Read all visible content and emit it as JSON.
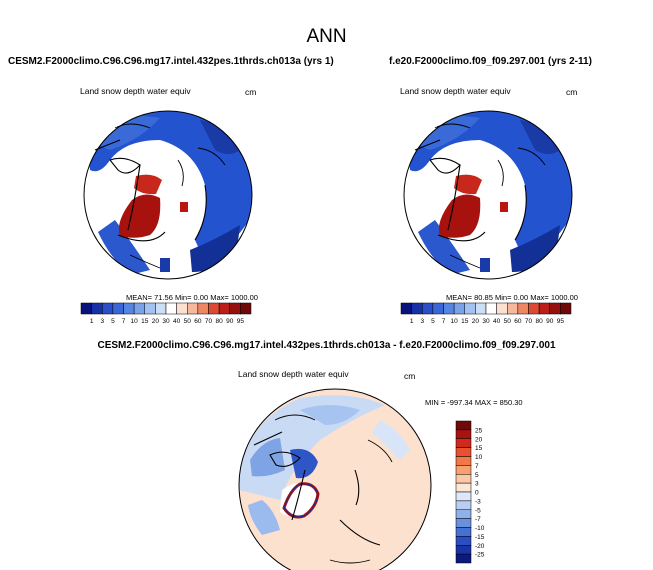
{
  "main_title": "ANN",
  "panels": [
    {
      "case_title": "CESM2.F2000climo.C96.C96.mg17.intel.432pes.1thrds.ch013a (yrs 1)",
      "variable": "Land snow depth water equiv",
      "units": "cm",
      "stats": "MEAN= 71.56  Min=   0.00  Max= 1000.00"
    },
    {
      "case_title": "f.e20.F2000climo.f09_f09.297.001 (yrs 2-11)",
      "variable": "Land snow depth water equiv",
      "units": "cm",
      "stats": "MEAN= 80.85  Min=   0.00  Max= 1000.00"
    }
  ],
  "abs_colorbar": {
    "labels": [
      "1",
      "3",
      "5",
      "7",
      "10",
      "15",
      "20",
      "30",
      "40",
      "50",
      "60",
      "70",
      "80",
      "90",
      "95"
    ],
    "colors": [
      "#08127a",
      "#1630a8",
      "#2a4fc8",
      "#3a67d8",
      "#5684e2",
      "#7aa2ea",
      "#a3c2f2",
      "#cddff7",
      "#ffffff",
      "#fde0cf",
      "#f7b79b",
      "#ef8664",
      "#dc4a35",
      "#bb1f1a",
      "#94110f",
      "#6e0a08"
    ]
  },
  "diff": {
    "title": "CESM2.F2000climo.C96.C96.mg17.intel.432pes.1thrds.ch013a - f.e20.F2000climo.f09_f09.297.001",
    "variable": "Land snow depth water equiv",
    "units": "cm",
    "stats": "MIN = -997.34 MAX = 850.30",
    "colorbar_labels": [
      "25",
      "20",
      "15",
      "10",
      "7",
      "5",
      "3",
      "0",
      "-3",
      "-5",
      "-7",
      "-10",
      "-15",
      "-20",
      "-25"
    ],
    "colorbar_colors": [
      "#6e0a08",
      "#a5140f",
      "#cf2a1c",
      "#e8502e",
      "#f2784a",
      "#f9a06d",
      "#fcc9a5",
      "#fde6d6",
      "#dde8f8",
      "#b8cff2",
      "#8fb1ea",
      "#6a91e0",
      "#4670d4",
      "#2b4fc0",
      "#1a34a5",
      "#0a1a7e"
    ]
  }
}
